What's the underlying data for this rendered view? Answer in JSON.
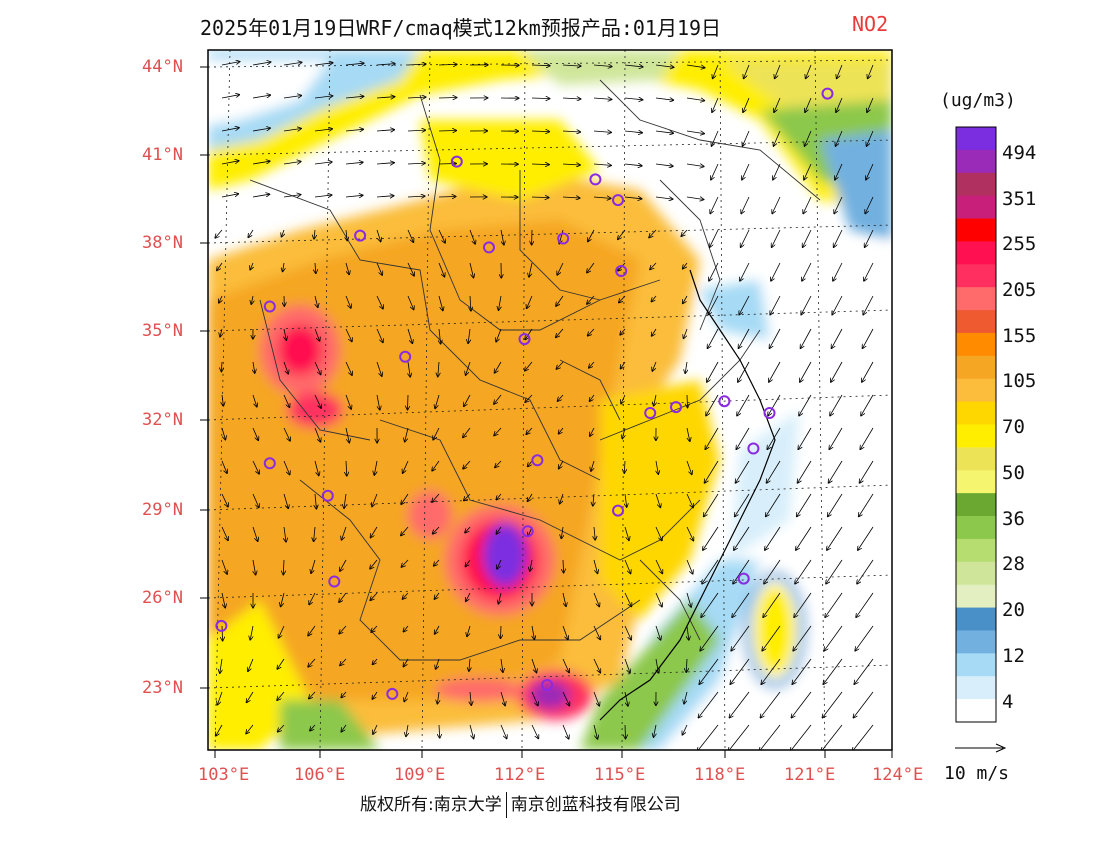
{
  "title": "2025年01月19日WRF/cmaq模式12km预报产品:01月19日",
  "pollutant": "NO2",
  "latitude_labels": [
    "44°N",
    "41°N",
    "38°N",
    "35°N",
    "32°N",
    "29°N",
    "26°N",
    "23°N"
  ],
  "longitude_labels": [
    "103°E",
    "106°E",
    "109°E",
    "112°E",
    "115°E",
    "118°E",
    "121°E",
    "124°E"
  ],
  "colorbar": {
    "unit": "(ug/m3)",
    "labels": [
      "494",
      "351",
      "255",
      "205",
      "155",
      "105",
      "70",
      "50",
      "36",
      "28",
      "20",
      "12",
      "4"
    ],
    "colors_top_to_bottom": [
      "#7b2de0",
      "#9a2ab8",
      "#b03060",
      "#c8207a",
      "#ff0000",
      "#ff1050",
      "#ff3060",
      "#ff6a6a",
      "#f05a30",
      "#ff8c00",
      "#f5a623",
      "#fbbd3b",
      "#ffd700",
      "#ffee00",
      "#ede356",
      "#f5f570",
      "#6aa832",
      "#8cc84b",
      "#b5dd70",
      "#cfe69a",
      "#e3efc0",
      "#4a90c8",
      "#72b0e0",
      "#a6daf5",
      "#d8effb",
      "#ffffff"
    ]
  },
  "wind_reference": {
    "label": "10 m/s",
    "value_m_s": 10
  },
  "copyright": {
    "left": "版权所有:南京大学",
    "right": "南京创蓝科技有限公司"
  },
  "colors": {
    "axis_label": "#e05050",
    "station_marker": "#8a2be2",
    "pollutant_text": "#e83a3a"
  },
  "map": {
    "lon_range": [
      103,
      124
    ],
    "lat_range": [
      21,
      44.5
    ],
    "field": "NO2 concentration",
    "stations_lonlat": [
      [
        122,
        43.1
      ],
      [
        110.5,
        40.8
      ],
      [
        114.8,
        40.2
      ],
      [
        115.5,
        39.5
      ],
      [
        107.5,
        38.3
      ],
      [
        111.5,
        37.9
      ],
      [
        113.8,
        38.2
      ],
      [
        115.6,
        37.1
      ],
      [
        104.7,
        35.9
      ],
      [
        108.9,
        34.2
      ],
      [
        112.6,
        34.8
      ],
      [
        118.8,
        32.7
      ],
      [
        120.2,
        32.3
      ],
      [
        116.5,
        32.3
      ],
      [
        117.3,
        32.5
      ],
      [
        104.7,
        30.6
      ],
      [
        113,
        30.7
      ],
      [
        119.7,
        31.1
      ],
      [
        115.5,
        29
      ],
      [
        106.5,
        29.5
      ],
      [
        112.7,
        28.3
      ],
      [
        106.7,
        26.6
      ],
      [
        103.2,
        25.1
      ],
      [
        119.4,
        26.7
      ],
      [
        108.5,
        22.8
      ],
      [
        113.3,
        23.1
      ]
    ]
  }
}
